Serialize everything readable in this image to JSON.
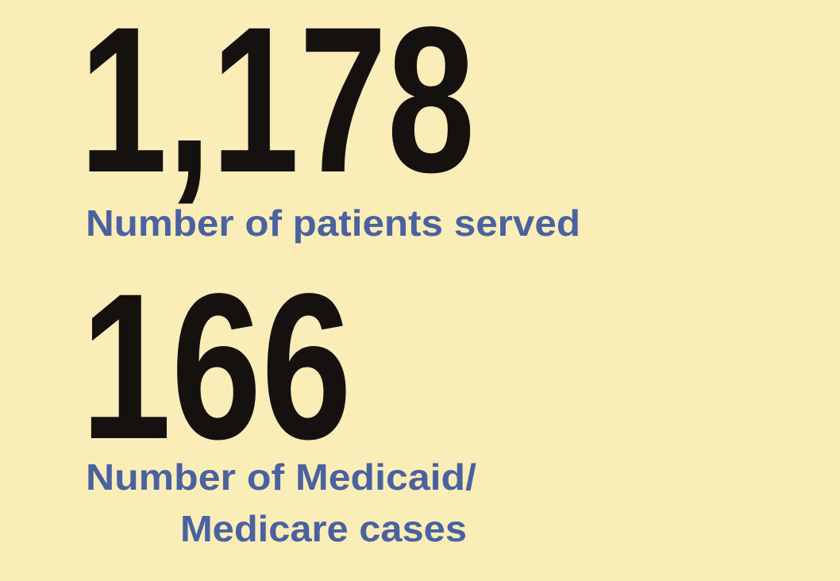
{
  "stats": [
    {
      "number": "1,178",
      "label": [
        "Number of patients served"
      ]
    },
    {
      "number": "166",
      "label": [
        "Number of Medicaid/",
        "Medicare cases"
      ]
    }
  ]
}
